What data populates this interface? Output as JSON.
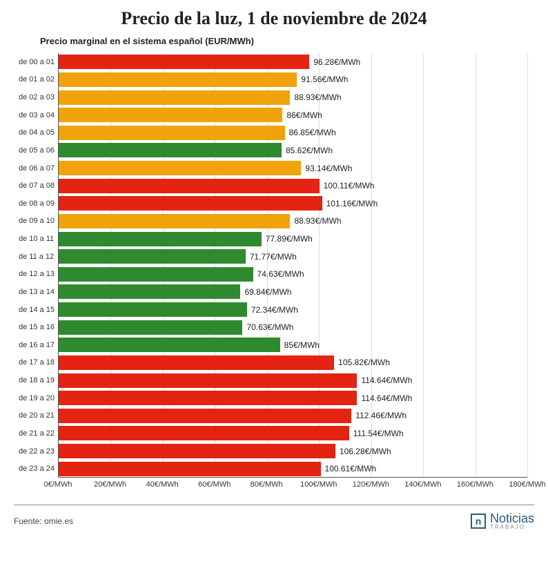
{
  "title": "Precio de la luz, 1 de noviembre de 2024",
  "title_fontsize": 26,
  "subtitle": "Precio marginal en el sistema español (EUR/MWh)",
  "subtitle_fontsize": 13,
  "chart": {
    "type": "bar",
    "orientation": "horizontal",
    "xlim": [
      0,
      180
    ],
    "xtick_step": 20,
    "x_unit": "€/MWh",
    "x_tick_fontsize": 11,
    "y_tick_fontsize": 11,
    "bar_label_fontsize": 12,
    "background_color": "#ffffff",
    "grid_color": "#dddddd",
    "axis_color": "#555555",
    "colors": {
      "red": "#e42313",
      "amber": "#f0a30a",
      "green": "#2f8a2f"
    },
    "bars": [
      {
        "label": "de 00 a 01",
        "value": 96.28,
        "color": "red"
      },
      {
        "label": "de 01 a 02",
        "value": 91.56,
        "color": "amber"
      },
      {
        "label": "de 02 a 03",
        "value": 88.93,
        "color": "amber"
      },
      {
        "label": "de 03 a 04",
        "value": 86.0,
        "text": "86€/MWh",
        "color": "amber"
      },
      {
        "label": "de 04 a 05",
        "value": 86.85,
        "color": "amber"
      },
      {
        "label": "de 05 a 06",
        "value": 85.62,
        "color": "green"
      },
      {
        "label": "de 06 a 07",
        "value": 93.14,
        "color": "amber"
      },
      {
        "label": "de 07 a 08",
        "value": 100.11,
        "color": "red"
      },
      {
        "label": "de 08 a 09",
        "value": 101.16,
        "color": "red"
      },
      {
        "label": "de 09 a 10",
        "value": 88.93,
        "color": "amber"
      },
      {
        "label": "de 10 a 11",
        "value": 77.89,
        "color": "green"
      },
      {
        "label": "de 11 a 12",
        "value": 71.77,
        "color": "green"
      },
      {
        "label": "de 12 a 13",
        "value": 74.63,
        "color": "green"
      },
      {
        "label": "de 13 a 14",
        "value": 69.84,
        "color": "green"
      },
      {
        "label": "de 14 a 15",
        "value": 72.34,
        "color": "green"
      },
      {
        "label": "de 15 a 16",
        "value": 70.63,
        "color": "green"
      },
      {
        "label": "de 16 a 17",
        "value": 85.0,
        "text": "85€/MWh",
        "color": "green"
      },
      {
        "label": "de 17 a 18",
        "value": 105.82,
        "color": "red"
      },
      {
        "label": "de 18 a 19",
        "value": 114.64,
        "color": "red"
      },
      {
        "label": "de 19 a 20",
        "value": 114.64,
        "color": "red"
      },
      {
        "label": "de 20 a 21",
        "value": 112.46,
        "color": "red"
      },
      {
        "label": "de 21 a 22",
        "value": 111.54,
        "color": "red"
      },
      {
        "label": "de 22 a 23",
        "value": 106.28,
        "color": "red"
      },
      {
        "label": "de 23 a 24",
        "value": 100.61,
        "color": "red"
      }
    ]
  },
  "footer": {
    "source_label": "Fuente: omie.es",
    "source_fontsize": 12,
    "brand_main": "Noticias",
    "brand_sub": "TRABAJO"
  }
}
